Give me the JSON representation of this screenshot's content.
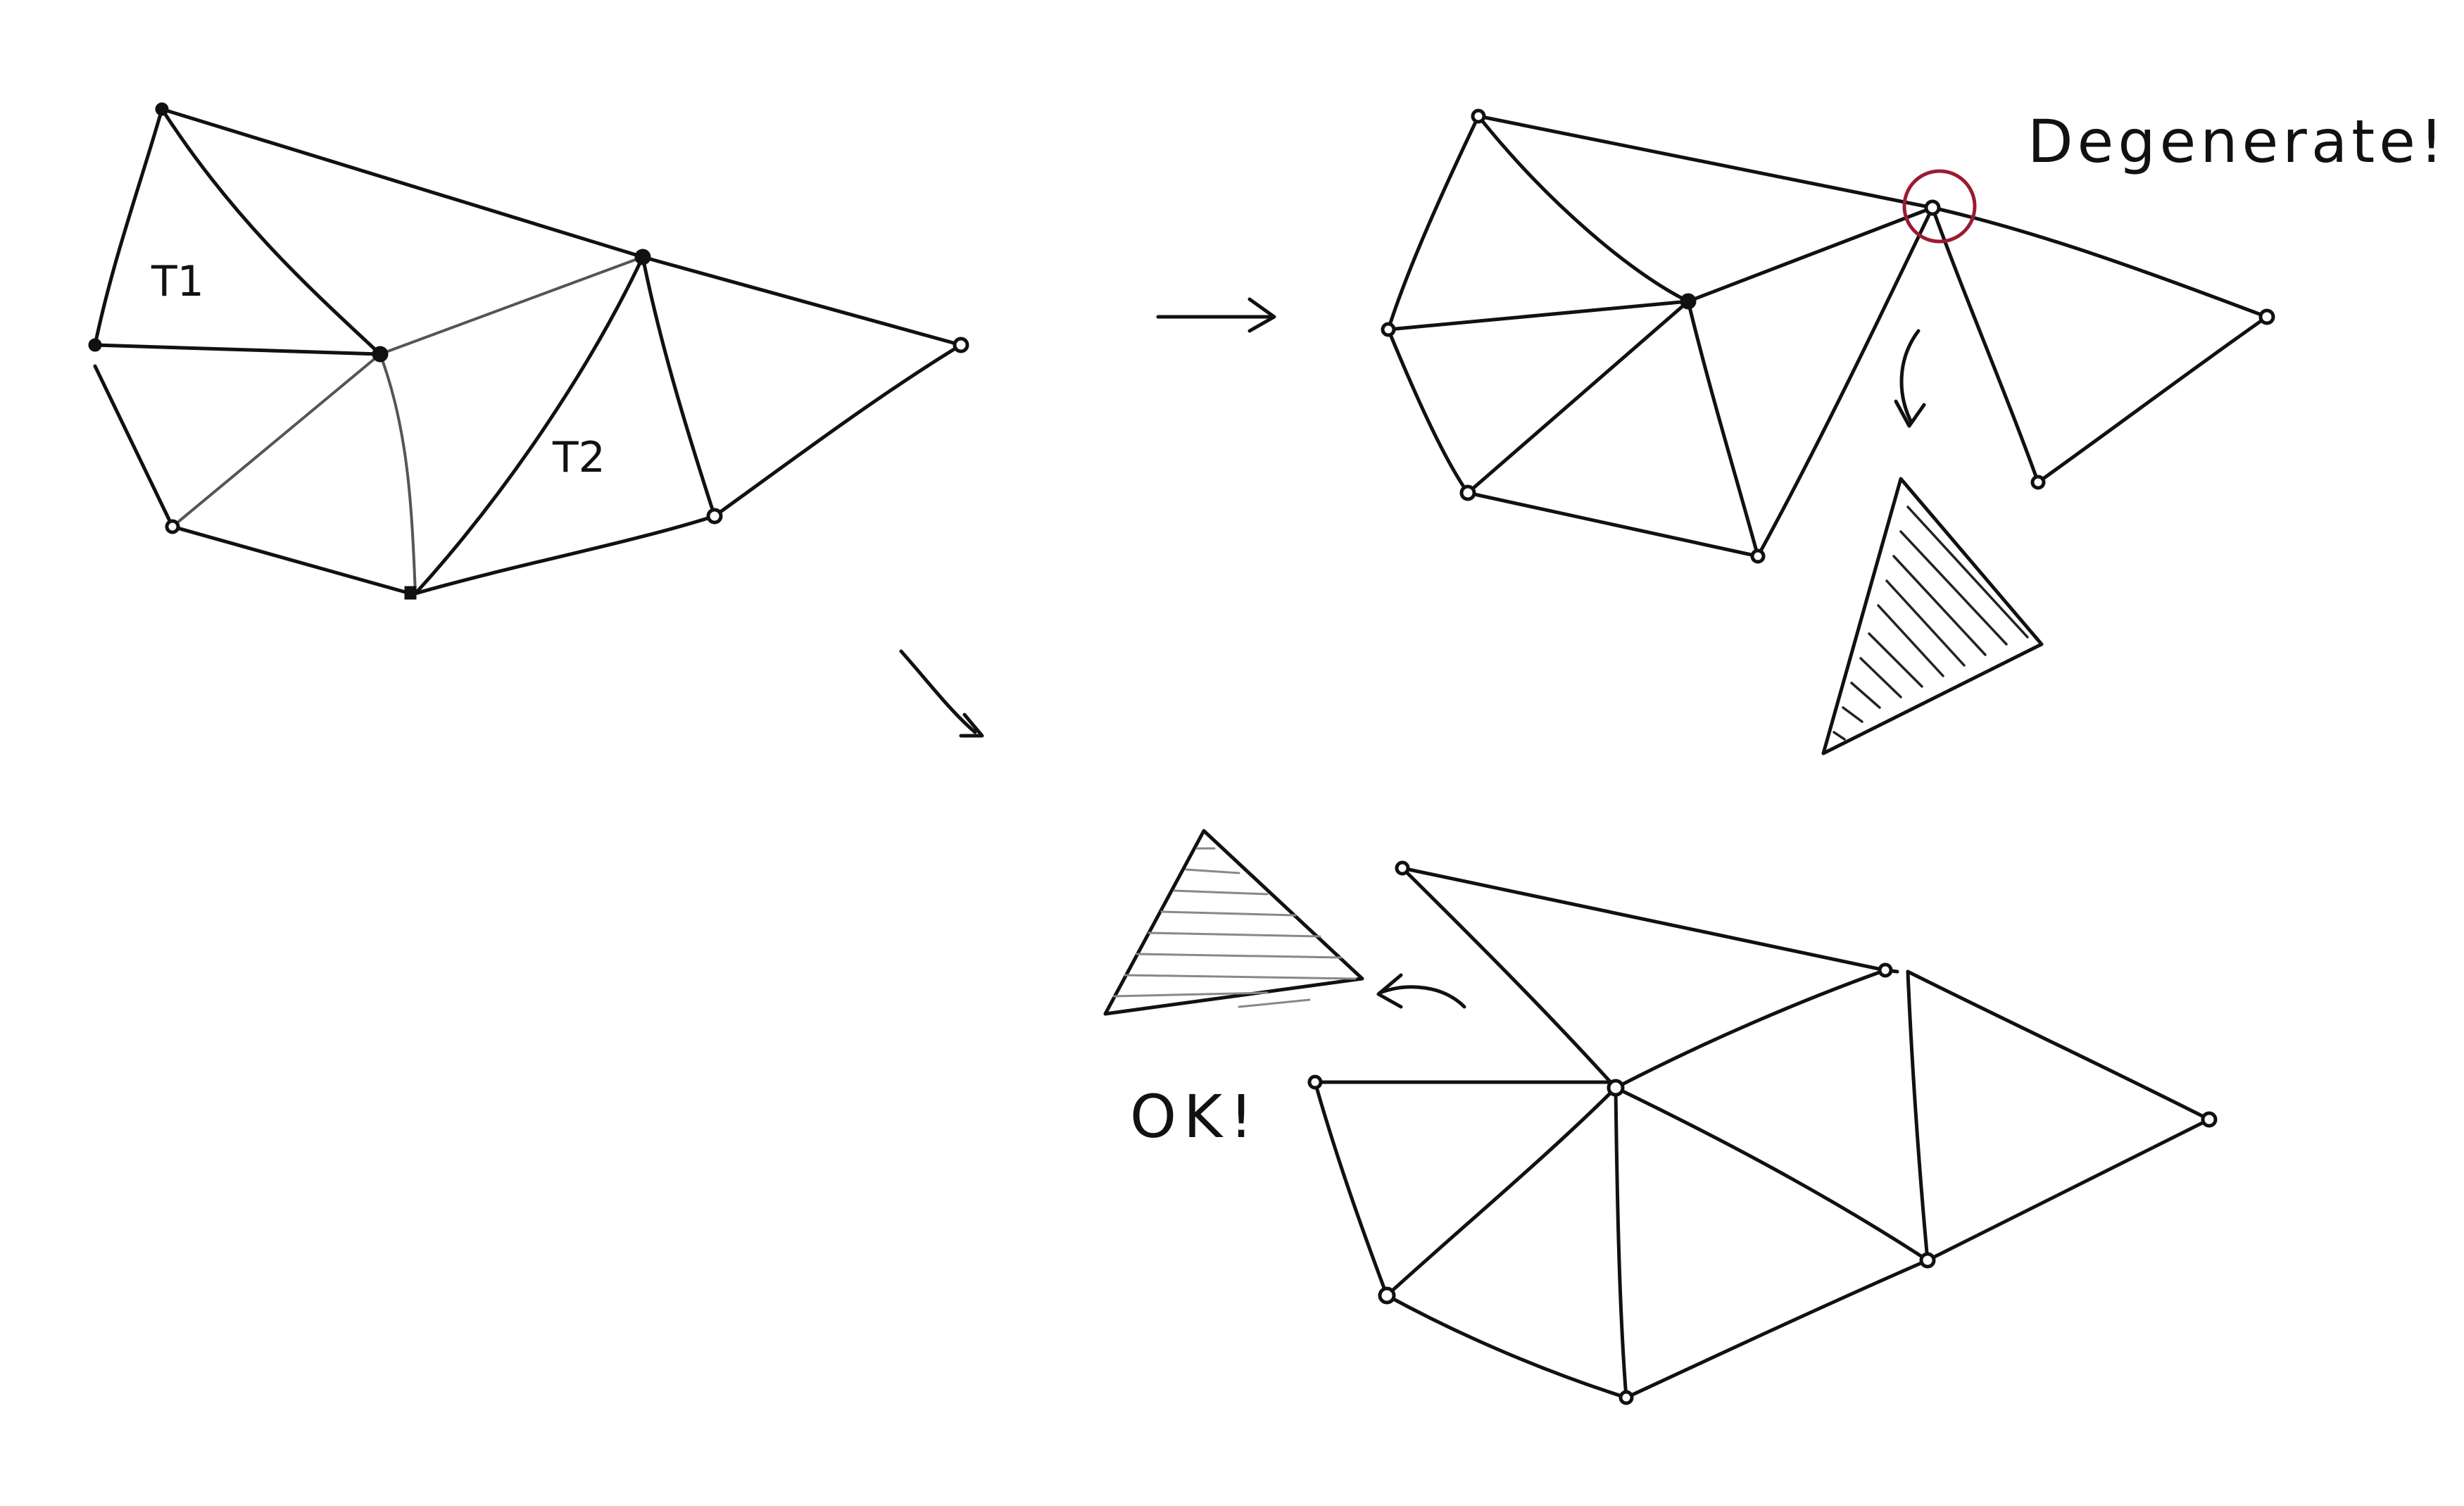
{
  "labels": {
    "t1": "T1",
    "t2": "T2",
    "degenerate": "Degenerate!",
    "ok": "OK!"
  },
  "colors": {
    "ink": "#111111",
    "highlight_circle": "#9b1b30"
  }
}
